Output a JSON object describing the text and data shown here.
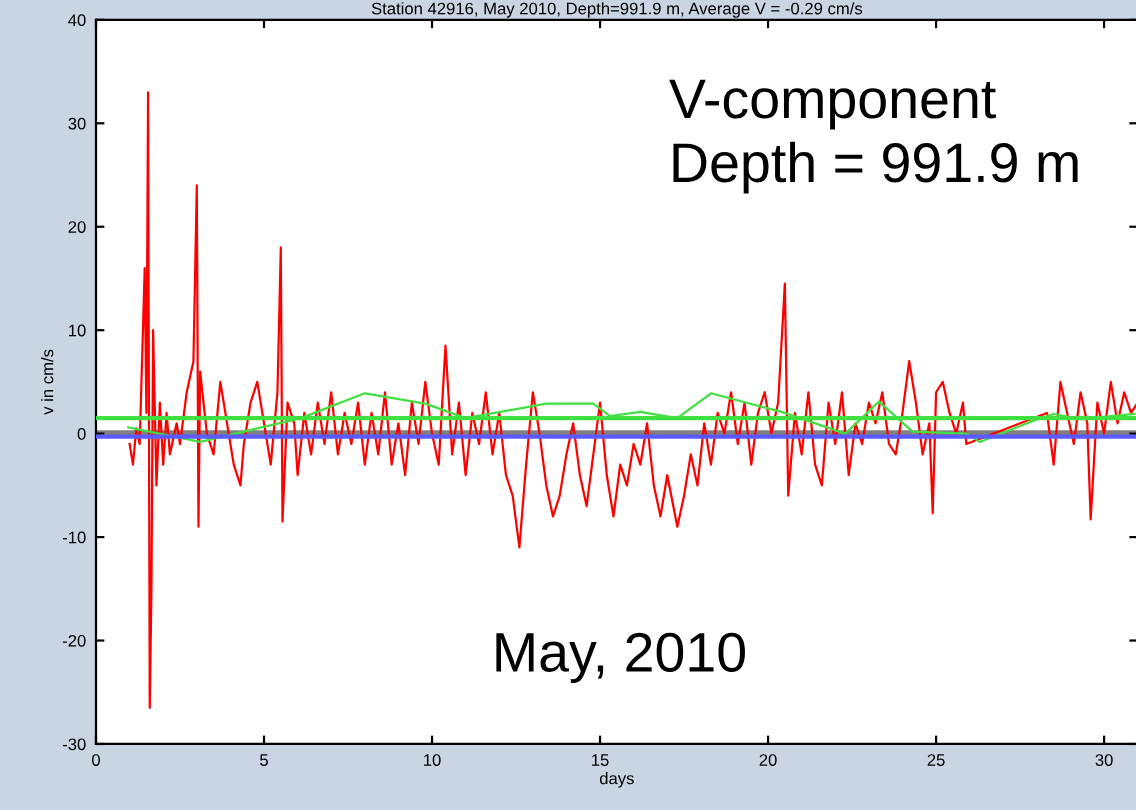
{
  "chart_data": {
    "type": "line",
    "title": "Station 42916, May 2010, Depth=991.9 m, Average V = -0.29 cm/s",
    "xlabel": "days",
    "ylabel": "v in cm/s",
    "annotations": [
      "V-component\nDepth = 991.9 m",
      "May, 2010"
    ],
    "xlim": [
      0,
      31
    ],
    "xticks": [
      0,
      5,
      10,
      15,
      20,
      25,
      30
    ],
    "ylim": [
      -30,
      40
    ],
    "yticks": [
      -30,
      -20,
      -10,
      0,
      10,
      20,
      30,
      40
    ],
    "grid": false,
    "legend": false,
    "ref_lines": [
      {
        "axis": "y",
        "value": 0,
        "label": null,
        "color": "#808080"
      },
      {
        "axis": "y",
        "value": -0.29,
        "label": null,
        "color": "#5a5aff"
      },
      {
        "axis": "y",
        "value": 1.5,
        "label": null,
        "color": "#40e040"
      }
    ],
    "series": [
      {
        "color": "#ff0000",
        "x": [
          1.0,
          1.1,
          1.2,
          1.3,
          1.45,
          1.5,
          1.55,
          1.6,
          1.65,
          1.7,
          1.8,
          1.9,
          2.0,
          2.1,
          2.2,
          2.4,
          2.5,
          2.7,
          2.9,
          3.0,
          3.05,
          3.1,
          3.3,
          3.5,
          3.7,
          3.9,
          4.1,
          4.3,
          4.4,
          4.6,
          4.8,
          5.0,
          5.2,
          5.4,
          5.5,
          5.55,
          5.7,
          5.9,
          6.0,
          6.2,
          6.4,
          6.6,
          6.8,
          7.0,
          7.2,
          7.4,
          7.6,
          7.8,
          8.0,
          8.2,
          8.4,
          8.6,
          8.8,
          9.0,
          9.2,
          9.4,
          9.6,
          9.8,
          10.0,
          10.2,
          10.4,
          10.6,
          10.8,
          11.0,
          11.2,
          11.4,
          11.6,
          11.8,
          12.0,
          12.2,
          12.4,
          12.6,
          12.8,
          13.0,
          13.2,
          13.4,
          13.6,
          13.8,
          14.0,
          14.2,
          14.4,
          14.6,
          14.8,
          15.0,
          15.2,
          15.4,
          15.6,
          15.8,
          16.0,
          16.2,
          16.4,
          16.6,
          16.8,
          17.0,
          17.3,
          17.5,
          17.7,
          17.9,
          18.1,
          18.3,
          18.5,
          18.7,
          18.9,
          19.1,
          19.3,
          19.5,
          19.7,
          19.9,
          20.1,
          20.3,
          20.5,
          20.6,
          20.8,
          21.0,
          21.2,
          21.4,
          21.6,
          21.8,
          22.0,
          22.2,
          22.4,
          22.6,
          22.8,
          23.0,
          23.2,
          23.4,
          23.6,
          23.8,
          24.0,
          24.2,
          24.4,
          24.6,
          24.8,
          24.9,
          25.0,
          25.2,
          25.4,
          25.6,
          25.8,
          25.9,
          28.3,
          28.5,
          28.7,
          28.9,
          29.1,
          29.3,
          29.5,
          29.6,
          29.8,
          30.0,
          30.2,
          30.4,
          30.6,
          30.8,
          31.0
        ],
        "values": [
          -1,
          -3,
          0.5,
          -1,
          16,
          2,
          33,
          -26.5,
          -15,
          10,
          -5,
          3,
          -3,
          2,
          -2,
          1,
          -1,
          4,
          7,
          24,
          -9,
          6,
          0,
          -2,
          5,
          1,
          -3,
          -5,
          -1,
          3,
          5,
          1,
          -3,
          4,
          18,
          -8.5,
          3,
          1,
          -4,
          2,
          -2,
          3,
          -1,
          4,
          -2,
          2,
          -1,
          3,
          -3,
          2,
          -2,
          4,
          -3,
          1,
          -4,
          3,
          -1,
          5,
          0,
          -3,
          8.5,
          -2,
          3,
          -4,
          2,
          -1,
          4,
          -2,
          2,
          -4,
          -6,
          -11,
          -3,
          4,
          0,
          -5,
          -8,
          -6,
          -2,
          1,
          -4,
          -7,
          -2,
          3,
          -4,
          -8,
          -3,
          -5,
          -1,
          -3,
          1,
          -5,
          -8,
          -4,
          -9,
          -6,
          -2,
          -5,
          1,
          -3,
          2,
          0,
          4,
          -1,
          3,
          -3,
          2,
          4,
          0,
          3,
          14.5,
          -6,
          2,
          -2,
          4,
          -3,
          -5,
          3,
          -1,
          4,
          -4,
          1,
          -1,
          3,
          1,
          4,
          -1,
          -2,
          2,
          7,
          3,
          -2,
          1,
          -7.7,
          4,
          5,
          2,
          0,
          3,
          -1,
          2,
          -3,
          5,
          2,
          -1,
          4,
          1,
          -8.3,
          3,
          0,
          5,
          1,
          4,
          2,
          3
        ]
      },
      {
        "color": "#40e040",
        "x": [
          0.96,
          3.1,
          6.1,
          8.0,
          9.8,
          11.0,
          13.4,
          14.8,
          15.3,
          16.2,
          17.3,
          18.3,
          20.4,
          22.3,
          23.3,
          24.3,
          25.9,
          26.3,
          28.1,
          28.5,
          29.3,
          30.9
        ],
        "values": [
          0.6,
          -0.8,
          1.5,
          3.9,
          2.9,
          1.5,
          2.9,
          2.9,
          1.7,
          2.1,
          1.5,
          3.9,
          2.1,
          0,
          3.1,
          0.2,
          0,
          -0.8,
          1.5,
          1.9,
          1.4,
          1.9
        ]
      }
    ]
  }
}
